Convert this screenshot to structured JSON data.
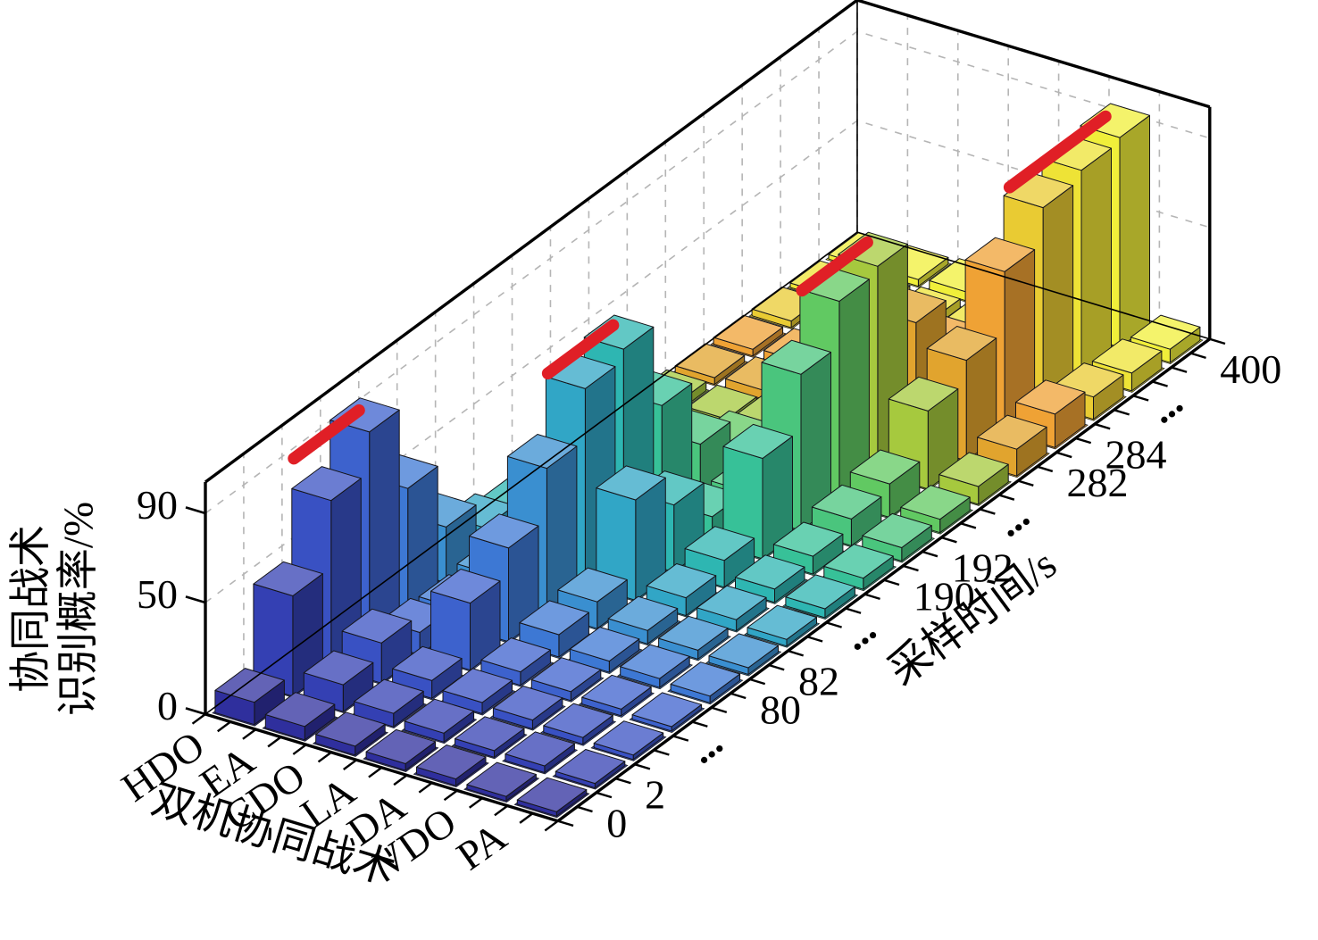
{
  "figure": {
    "background": "#ffffff",
    "accent_marker_color": "#e01f26"
  },
  "chart_data": {
    "type": "bar",
    "subtype": "3d-bar-grid",
    "title": "",
    "xlabel": "双机协同战术",
    "ylabel": "采样时间/s",
    "zlabel_lines": [
      "协同战术",
      "识别概率/%"
    ],
    "categories": [
      "HDO",
      "EA",
      "CDO",
      "LA",
      "DA",
      "VDO",
      "PA"
    ],
    "z_ticks": [
      0,
      50,
      90
    ],
    "zlim": [
      0,
      104
    ],
    "y_ticks": [
      {
        "row": 0,
        "label": "0"
      },
      {
        "row": 1,
        "label": "2"
      },
      {
        "row": 2.5,
        "label": "⋯",
        "ellipsis": true
      },
      {
        "row": 4,
        "label": "80"
      },
      {
        "row": 5,
        "label": "82"
      },
      {
        "row": 6.5,
        "label": "⋯",
        "ellipsis": true
      },
      {
        "row": 8,
        "label": "190"
      },
      {
        "row": 9,
        "label": "192"
      },
      {
        "row": 10.5,
        "label": "⋯",
        "ellipsis": true
      },
      {
        "row": 12,
        "label": "282"
      },
      {
        "row": 13,
        "label": "284"
      },
      {
        "row": 14.5,
        "label": "⋯",
        "ellipsis": true
      },
      {
        "row": 16,
        "label": "400"
      }
    ],
    "values_note": "recognition probability %, rows = sampling-time slices front-to-back, cols = tactics HDO..PA",
    "values": [
      [
        10,
        6,
        4,
        3,
        3,
        2,
        2
      ],
      [
        45,
        12,
        6,
        4,
        3,
        3,
        2
      ],
      [
        75,
        18,
        8,
        5,
        4,
        3,
        2
      ],
      [
        93,
        10,
        30,
        6,
        4,
        3,
        2
      ],
      [
        55,
        8,
        42,
        10,
        5,
        4,
        3
      ],
      [
        25,
        10,
        65,
        12,
        6,
        4,
        3
      ],
      [
        12,
        8,
        88,
        45,
        8,
        5,
        3
      ],
      [
        8,
        6,
        93,
        30,
        12,
        6,
        4
      ],
      [
        6,
        5,
        55,
        12,
        45,
        8,
        5
      ],
      [
        5,
        6,
        25,
        10,
        70,
        12,
        6
      ],
      [
        4,
        5,
        12,
        8,
        90,
        15,
        6
      ],
      [
        4,
        4,
        8,
        10,
        93,
        35,
        8
      ],
      [
        3,
        4,
        6,
        8,
        55,
        45,
        12
      ],
      [
        3,
        4,
        5,
        6,
        30,
        72,
        15
      ],
      [
        3,
        3,
        5,
        6,
        15,
        88,
        10
      ],
      [
        2,
        3,
        4,
        5,
        10,
        92,
        8
      ],
      [
        2,
        3,
        4,
        5,
        8,
        94,
        6
      ]
    ],
    "row_colors": [
      "#2f2f9d",
      "#3440b3",
      "#3951c3",
      "#3d62cd",
      "#3d78d4",
      "#3a8fd0",
      "#31a6c6",
      "#2eb6b2",
      "#37c198",
      "#4ac57d",
      "#61c962",
      "#a6c93e",
      "#e1a42e",
      "#efa235",
      "#e9cb33",
      "#eee336",
      "#f0ef3a"
    ],
    "peak_markers": [
      {
        "col": 0,
        "from": 1.65,
        "to": 3.35,
        "z": 97,
        "tactic": "HDO"
      },
      {
        "col": 2,
        "from": 5.65,
        "to": 7.35,
        "z": 98,
        "tactic": "CDO"
      },
      {
        "col": 4,
        "from": 9.65,
        "to": 11.35,
        "z": 98,
        "tactic": "DA"
      },
      {
        "col": 5,
        "from": 13.75,
        "to": 16.25,
        "z": 99,
        "tactic": "VDO"
      }
    ],
    "marker_color": "#e01f26",
    "grid": {
      "wall_dash_color": "#b5b5b5",
      "wall_z_lines": [
        50,
        90
      ],
      "floor_gap_color": "#ffffff"
    },
    "legend": null
  }
}
